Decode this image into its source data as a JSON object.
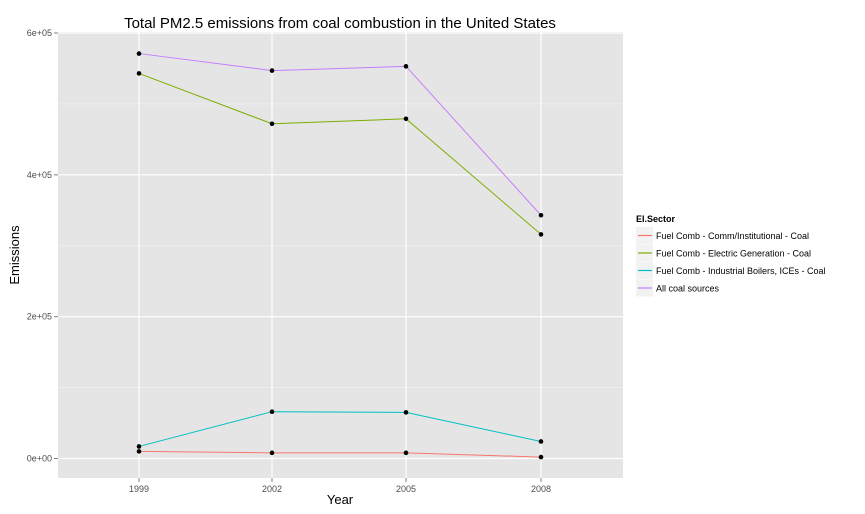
{
  "chart_data": {
    "type": "line",
    "title": "Total PM2.5 emissions from coal combustion in the United States",
    "xlabel": "Year",
    "ylabel": "Emissions",
    "x": [
      "1999",
      "2002",
      "2005",
      "2008"
    ],
    "ylim": [
      -25000,
      600000
    ],
    "y_ticks": [
      {
        "value": 0,
        "label": "0e+00"
      },
      {
        "value": 200000,
        "label": "2e+05"
      },
      {
        "value": 400000,
        "label": "4e+05"
      },
      {
        "value": 600000,
        "label": "6e+05"
      }
    ],
    "grid": true,
    "legend": {
      "title": "EI.Sector",
      "position": "right"
    },
    "series": [
      {
        "name": "Fuel Comb - Comm/Institutional - Coal",
        "color": "#F8766D",
        "values": [
          10000,
          8000,
          8000,
          2000
        ]
      },
      {
        "name": "Fuel Comb - Electric Generation - Coal",
        "color": "#7CAE00",
        "values": [
          543000,
          472000,
          479000,
          316000
        ]
      },
      {
        "name": "Fuel Comb - Industrial Boilers, ICEs - Coal",
        "color": "#00BFC4",
        "values": [
          17000,
          66000,
          65000,
          24000
        ]
      },
      {
        "name": "All coal sources",
        "color": "#C77CFF",
        "values": [
          571000,
          547000,
          553000,
          343000
        ]
      }
    ]
  }
}
